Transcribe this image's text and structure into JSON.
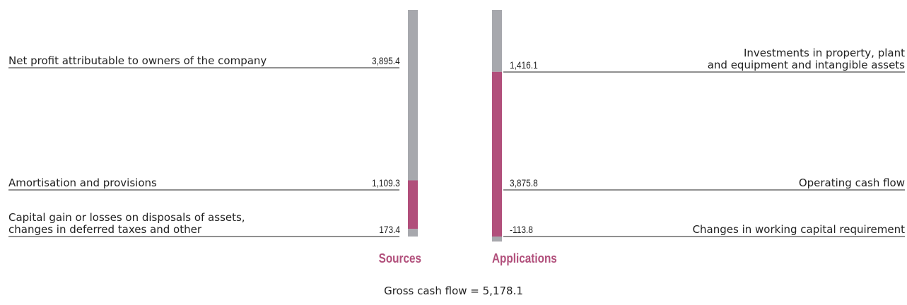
{
  "sources": {
    "title": "Sources",
    "items": [
      {
        "label_lines": [
          "Net profit attributable to owners of the company"
        ],
        "value": 3895.4,
        "value_label": "3,895.4",
        "color": "#a7a8ad"
      },
      {
        "label_lines": [
          "Amortisation and provisions"
        ],
        "value": 1109.3,
        "value_label": "1,109.3",
        "color": "#b14f7b"
      },
      {
        "label_lines": [
          "Capital gain or losses on disposals of assets,",
          "changes in deferred taxes and other"
        ],
        "value": 173.4,
        "value_label": "173.4",
        "color": "#a7a8ad"
      }
    ]
  },
  "applications": {
    "title": "Applications",
    "items": [
      {
        "label_lines": [
          "Investments in property, plant",
          "and equipment and intangible assets"
        ],
        "value": 1416.1,
        "value_label": "1,416.1",
        "color": "#a7a8ad"
      },
      {
        "label_lines": [
          "Operating cash flow"
        ],
        "value": 3875.8,
        "value_label": "3,875.8",
        "color": "#b14f7b"
      },
      {
        "label_lines": [
          "Changes in working capital requirement"
        ],
        "value": -113.8,
        "value_label": "-113.8",
        "color": "#a7a8ad"
      }
    ]
  },
  "footer": "Gross cash flow = 5,178.1"
}
